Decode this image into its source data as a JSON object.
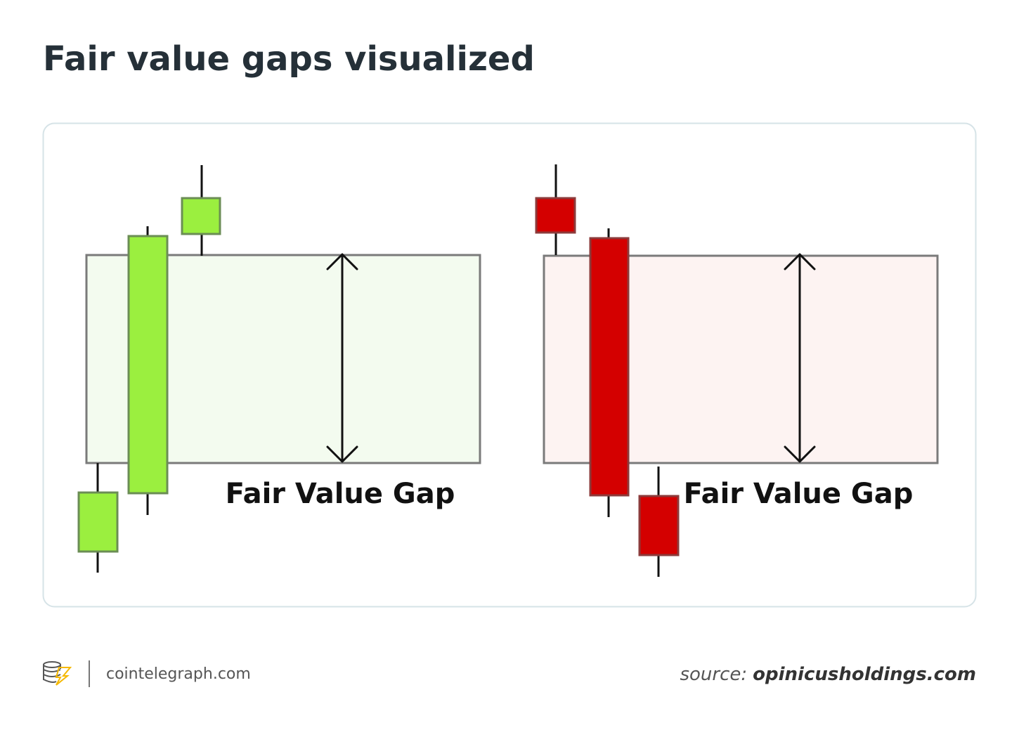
{
  "header": {
    "title": "Fair value gaps visualized"
  },
  "panels": [
    {
      "label": "Fair Value Gap"
    },
    {
      "label": "Fair Value Gap"
    }
  ],
  "footer": {
    "brand": "cointelegraph.com",
    "source_prefix": "source:",
    "source": "opinicusholdings.com"
  }
}
